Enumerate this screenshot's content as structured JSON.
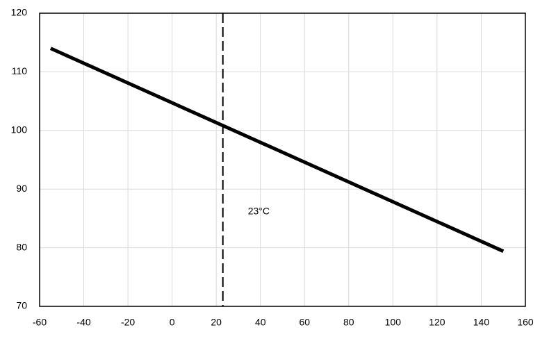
{
  "chart_data": {
    "type": "line",
    "series": [
      {
        "color": "#000000",
        "x": [
          -55,
          150
        ],
        "values": [
          114,
          79.4
        ]
      }
    ],
    "vline": 23,
    "annotation": "23°C",
    "xlim": [
      -60,
      160
    ],
    "xticks": [
      -60,
      -40,
      -20,
      0,
      20,
      40,
      60,
      80,
      100,
      120,
      140,
      160
    ],
    "ylim": [
      70,
      120
    ],
    "yticks": [
      70,
      80,
      90,
      100,
      110,
      120
    ],
    "grid": true
  }
}
